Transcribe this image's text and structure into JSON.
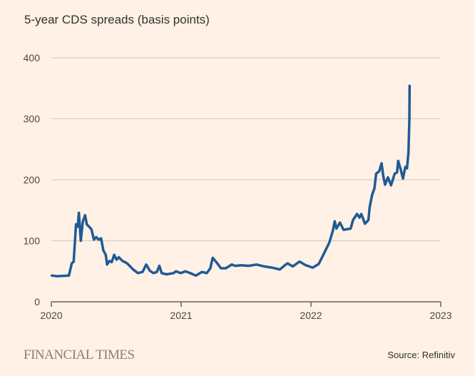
{
  "chart_data": {
    "type": "line",
    "title": "5-year CDS spreads (basis points)",
    "xlabel": "",
    "ylabel": "",
    "xlim": [
      2020,
      2023
    ],
    "ylim": [
      0,
      400
    ],
    "x_ticks": [
      "2020",
      "2021",
      "2022",
      "2023"
    ],
    "y_ticks": [
      "0",
      "100",
      "200",
      "300",
      "400"
    ],
    "grid": "horizontal",
    "line_color": "#1F5A96",
    "series": [
      {
        "x": [
          2020.004,
          2020.044,
          2020.135,
          2020.157,
          2020.172,
          2020.183,
          2020.19,
          2020.203,
          2020.212,
          2020.218,
          2020.227,
          2020.242,
          2020.26,
          2020.273,
          2020.291,
          2020.309,
          2020.328,
          2020.346,
          2020.364,
          2020.383,
          2020.401,
          2020.419,
          2020.429,
          2020.447,
          2020.465,
          2020.484,
          2020.502,
          2020.52,
          2020.548,
          2020.584,
          2020.63,
          2020.667,
          2020.703,
          2020.731,
          2020.758,
          2020.786,
          2020.813,
          2020.832,
          2020.85,
          2020.886,
          2020.941,
          2020.96,
          2020.996,
          2021.033,
          2021.069,
          2021.114,
          2021.16,
          2021.197,
          2021.225,
          2021.243,
          2021.271,
          2021.307,
          2021.344,
          2021.39,
          2021.417,
          2021.463,
          2021.52,
          2021.58,
          2021.64,
          2021.7,
          2021.76,
          2021.8,
          2021.82,
          2021.86,
          2021.912,
          2021.96,
          2022.013,
          2022.06,
          2022.095,
          2022.141,
          2022.168,
          2022.183,
          2022.196,
          2022.223,
          2022.251,
          2022.306,
          2022.324,
          2022.355,
          2022.374,
          2022.388,
          2022.416,
          2022.443,
          2022.452,
          2022.471,
          2022.489,
          2022.502,
          2022.526,
          2022.544,
          2022.557,
          2022.571,
          2022.593,
          2022.617,
          2022.645,
          2022.663,
          2022.672,
          2022.69,
          2022.709,
          2022.727,
          2022.74,
          2022.751,
          2022.758,
          2022.76
        ],
        "y": [
          43,
          42,
          43,
          63,
          66,
          103,
          127,
          123,
          146,
          127,
          100,
          131,
          142,
          127,
          123,
          119,
          102,
          106,
          102,
          104,
          84,
          77,
          61,
          67,
          65,
          77,
          69,
          73,
          67,
          63,
          53,
          47,
          49,
          61,
          51,
          47,
          49,
          59,
          47,
          45,
          47,
          50,
          47,
          50,
          47,
          43,
          49,
          47,
          55,
          72,
          65,
          55,
          55,
          61,
          59,
          60,
          59,
          61,
          58,
          56,
          53,
          60,
          63,
          58,
          66,
          60,
          56,
          62,
          77,
          97,
          116,
          132,
          120,
          130,
          118,
          120,
          134,
          144,
          138,
          144,
          128,
          134,
          155,
          175,
          186,
          210,
          214,
          227,
          206,
          192,
          204,
          191,
          210,
          212,
          231,
          218,
          202,
          221,
          219,
          245,
          299,
          354
        ]
      }
    ]
  },
  "footer": {
    "logo": "FINANCIAL TIMES",
    "source": "Source: Refinitiv"
  }
}
